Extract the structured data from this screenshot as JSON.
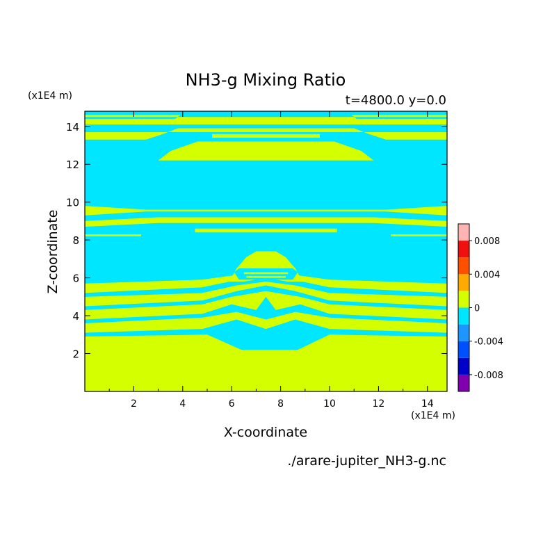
{
  "chart_data": {
    "type": "heatmap",
    "title": "NH3-g Mixing Ratio",
    "subtitle": "t=4800.0 y=0.0",
    "xlabel": "X-coordinate",
    "ylabel": "Z-coordinate",
    "x_unit": "(x1E4 m)",
    "y_unit": "(x1E4 m)",
    "source_file": "./arare-jupiter_NH3-g.nc",
    "xlim": [
      0,
      14.8
    ],
    "ylim": [
      0,
      14.8
    ],
    "x_ticks": [
      2,
      4,
      6,
      8,
      10,
      12,
      14
    ],
    "y_ticks": [
      2,
      4,
      6,
      8,
      10,
      12,
      14
    ],
    "colorbar": {
      "levels": [
        -0.01,
        -0.008,
        -0.006,
        -0.004,
        -0.002,
        0,
        0.002,
        0.004,
        0.006,
        0.008,
        0.01
      ],
      "colors": [
        "#8000b0",
        "#0000c8",
        "#0050ff",
        "#1e96ff",
        "#00e6ff",
        "#d4ff00",
        "#ffaa00",
        "#ff5000",
        "#f01010",
        "#ffb4b4"
      ],
      "tick_labels": [
        {
          "value": 0.008,
          "label": "0.008"
        },
        {
          "value": 0.004,
          "label": "0.004"
        },
        {
          "value": 0,
          "label": "0"
        },
        {
          "value": -0.004,
          "label": "-0.004"
        },
        {
          "value": -0.008,
          "label": "-0.008"
        }
      ]
    },
    "field": {
      "background": "#00e6ff",
      "bands": [
        {
          "color": "#d4ff00",
          "pts": [
            [
              0,
              0
            ],
            [
              14.8,
              0
            ],
            [
              14.8,
              2.9
            ],
            [
              10,
              3.0
            ],
            [
              8.7,
              2.2
            ],
            [
              6.4,
              2.2
            ],
            [
              5,
              3.0
            ],
            [
              0,
              2.9
            ]
          ]
        },
        {
          "color": "#d4ff00",
          "pts": [
            [
              0,
              3.1
            ],
            [
              4.8,
              3.3
            ],
            [
              6.2,
              3.8
            ],
            [
              7.4,
              3.3
            ],
            [
              8.6,
              3.8
            ],
            [
              10,
              3.3
            ],
            [
              14.8,
              3.1
            ],
            [
              14.8,
              3.6
            ],
            [
              10,
              3.9
            ],
            [
              8.6,
              4.2
            ],
            [
              7.4,
              3.8
            ],
            [
              6.2,
              4.2
            ],
            [
              4.8,
              3.9
            ],
            [
              0,
              3.6
            ]
          ]
        },
        {
          "color": "#d4ff00",
          "pts": [
            [
              0,
              3.8
            ],
            [
              4.8,
              4.1
            ],
            [
              6.0,
              4.6
            ],
            [
              7.0,
              4.3
            ],
            [
              7.4,
              5.0
            ],
            [
              7.8,
              4.3
            ],
            [
              8.8,
              4.6
            ],
            [
              10,
              4.1
            ],
            [
              14.8,
              3.8
            ],
            [
              14.8,
              4.3
            ],
            [
              10,
              4.6
            ],
            [
              8.8,
              5.0
            ],
            [
              7.4,
              5.3
            ],
            [
              6.0,
              5.0
            ],
            [
              4.8,
              4.6
            ],
            [
              0,
              4.3
            ]
          ]
        },
        {
          "color": "#d4ff00",
          "pts": [
            [
              0,
              4.5
            ],
            [
              4.8,
              4.8
            ],
            [
              6.2,
              5.3
            ],
            [
              7.4,
              5.6
            ],
            [
              8.6,
              5.3
            ],
            [
              10,
              4.8
            ],
            [
              14.8,
              4.5
            ],
            [
              14.8,
              5.0
            ],
            [
              10,
              5.2
            ],
            [
              8.6,
              5.6
            ],
            [
              7.4,
              5.8
            ],
            [
              6.2,
              5.6
            ],
            [
              4.8,
              5.2
            ],
            [
              0,
              5.0
            ]
          ]
        },
        {
          "color": "#d4ff00",
          "pts": [
            [
              0,
              5.2
            ],
            [
              4.8,
              5.5
            ],
            [
              5.9,
              5.8
            ],
            [
              7.4,
              6.0
            ],
            [
              8.9,
              5.8
            ],
            [
              10,
              5.5
            ],
            [
              14.8,
              5.2
            ],
            [
              14.8,
              5.7
            ],
            [
              10,
              5.9
            ],
            [
              8.9,
              6.1
            ],
            [
              7.4,
              6.3
            ],
            [
              5.9,
              6.1
            ],
            [
              4.8,
              5.9
            ],
            [
              0,
              5.7
            ]
          ]
        },
        {
          "color": "#d4ff00",
          "pts": [
            [
              5.9,
              5.8
            ],
            [
              6.2,
              6.5
            ],
            [
              6.6,
              7.1
            ],
            [
              7.0,
              7.4
            ],
            [
              7.8,
              7.4
            ],
            [
              8.2,
              7.1
            ],
            [
              8.6,
              6.5
            ],
            [
              8.9,
              5.8
            ],
            [
              8.3,
              5.8
            ],
            [
              7.4,
              6.0
            ],
            [
              6.5,
              5.8
            ]
          ]
        },
        {
          "color": "#00e6ff",
          "pts": [
            [
              6.3,
              5.9
            ],
            [
              8.5,
              5.9
            ],
            [
              8.7,
              6.3
            ],
            [
              8.5,
              6.5
            ],
            [
              6.3,
              6.5
            ],
            [
              6.1,
              6.3
            ]
          ]
        },
        {
          "color": "#d4ff00",
          "pts": [
            [
              6.6,
              6.0
            ],
            [
              8.2,
              6.0
            ],
            [
              8.2,
              6.1
            ],
            [
              6.6,
              6.1
            ]
          ]
        },
        {
          "color": "#d4ff00",
          "pts": [
            [
              6.5,
              6.2
            ],
            [
              8.3,
              6.2
            ],
            [
              8.3,
              6.3
            ],
            [
              6.5,
              6.3
            ]
          ]
        },
        {
          "color": "#d4ff00",
          "pts": [
            [
              0,
              8.2
            ],
            [
              2.3,
              8.2
            ],
            [
              2.3,
              8.3
            ],
            [
              0,
              8.3
            ]
          ]
        },
        {
          "color": "#d4ff00",
          "pts": [
            [
              12.5,
              8.2
            ],
            [
              14.8,
              8.2
            ],
            [
              14.8,
              8.3
            ],
            [
              12.5,
              8.3
            ]
          ]
        },
        {
          "color": "#d4ff00",
          "pts": [
            [
              4.5,
              8.4
            ],
            [
              10.3,
              8.4
            ],
            [
              10.3,
              8.6
            ],
            [
              4.5,
              8.6
            ]
          ]
        },
        {
          "color": "#d4ff00",
          "pts": [
            [
              0,
              8.7
            ],
            [
              3,
              8.9
            ],
            [
              11.8,
              8.9
            ],
            [
              14.8,
              8.7
            ],
            [
              14.8,
              9.0
            ],
            [
              11.8,
              9.2
            ],
            [
              3,
              9.2
            ],
            [
              0,
              9.0
            ]
          ]
        },
        {
          "color": "#d4ff00",
          "pts": [
            [
              0,
              9.3
            ],
            [
              2.5,
              9.5
            ],
            [
              12.3,
              9.5
            ],
            [
              14.8,
              9.3
            ],
            [
              14.8,
              9.8
            ],
            [
              12.3,
              9.6
            ],
            [
              2.5,
              9.6
            ],
            [
              0,
              9.8
            ]
          ]
        },
        {
          "color": "#d4ff00",
          "pts": [
            [
              3.0,
              12.2
            ],
            [
              3.5,
              12.7
            ],
            [
              4.6,
              13.2
            ],
            [
              10.2,
              13.2
            ],
            [
              11.3,
              12.7
            ],
            [
              11.8,
              12.2
            ]
          ]
        },
        {
          "color": "#d4ff00",
          "pts": [
            [
              5.2,
              13.4
            ],
            [
              9.6,
              13.4
            ],
            [
              9.6,
              13.6
            ],
            [
              5.2,
              13.6
            ]
          ]
        },
        {
          "color": "#d4ff00",
          "pts": [
            [
              0,
              13.3
            ],
            [
              2.5,
              13.3
            ],
            [
              3.2,
              13.6
            ],
            [
              3.8,
              13.9
            ],
            [
              11,
              13.9
            ],
            [
              11.6,
              13.6
            ],
            [
              12.3,
              13.3
            ],
            [
              14.8,
              13.3
            ],
            [
              14.8,
              13.7
            ],
            [
              0,
              13.7
            ]
          ]
        },
        {
          "color": "#d4ff00",
          "pts": [
            [
              0,
              14.1
            ],
            [
              3.5,
              14.1
            ],
            [
              11.3,
              14.1
            ],
            [
              14.8,
              14.1
            ],
            [
              14.8,
              14.4
            ],
            [
              0,
              14.4
            ]
          ]
        },
        {
          "color": "#d4ff00",
          "pts": [
            [
              0,
              14.6
            ],
            [
              3.9,
              14.6
            ],
            [
              3.5,
              14.2
            ],
            [
              11.3,
              14.2
            ],
            [
              10.9,
              14.6
            ],
            [
              14.8,
              14.6
            ],
            [
              14.8,
              14.5
            ],
            [
              0,
              14.5
            ]
          ]
        }
      ]
    }
  }
}
